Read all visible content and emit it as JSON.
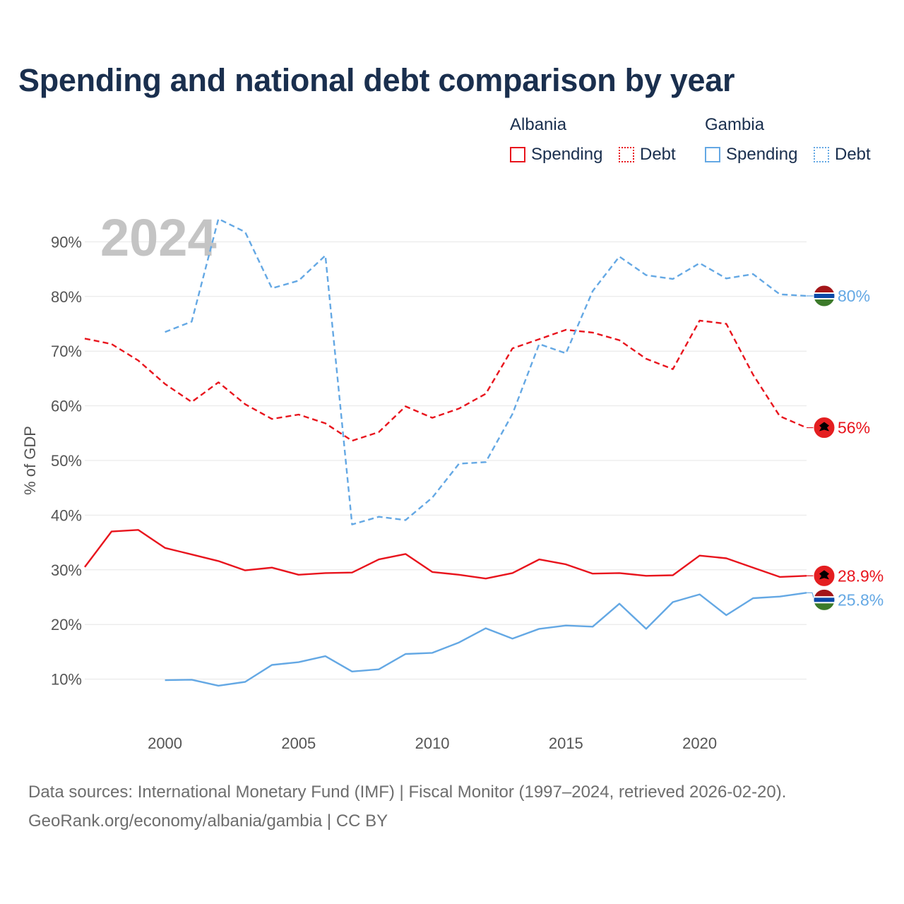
{
  "title": "Spending and national debt comparison by year",
  "legend": {
    "albania": {
      "name": "Albania",
      "spending": "Spending",
      "debt": "Debt"
    },
    "gambia": {
      "name": "Gambia",
      "spending": "Spending",
      "debt": "Debt"
    }
  },
  "year_watermark": "2024",
  "footer": {
    "line1": "Data sources: International Monetary Fund (IMF) | Fiscal Monitor (1997–2024, retrieved 2026-02-20).",
    "line2": "GeoRank.org/economy/albania/gambia | CC BY"
  },
  "colors": {
    "albania": "#e8141d",
    "gambia": "#64a8e4"
  },
  "chart_data": {
    "type": "line",
    "title": "Spending and national debt comparison by year",
    "ylabel": "% of GDP",
    "xlabel": "",
    "xlim": [
      1997,
      2024
    ],
    "ylim": [
      0,
      100
    ],
    "x_ticks": [
      2000,
      2005,
      2010,
      2015,
      2020
    ],
    "x_tick_labels": [
      "2000",
      "2005",
      "2010",
      "2015",
      "2020"
    ],
    "y_ticks": [
      10,
      20,
      30,
      40,
      50,
      60,
      70,
      80,
      90
    ],
    "y_tick_labels": [
      "10%",
      "20%",
      "30%",
      "40%",
      "50%",
      "60%",
      "70%",
      "80%",
      "90%"
    ],
    "grid": true,
    "series": [
      {
        "name": "Albania Spending",
        "country": "albania",
        "style": "solid",
        "end_label": "28.9%",
        "x": [
          1997,
          1998,
          1999,
          2000,
          2001,
          2002,
          2003,
          2004,
          2005,
          2006,
          2007,
          2008,
          2009,
          2010,
          2011,
          2012,
          2013,
          2014,
          2015,
          2016,
          2017,
          2018,
          2019,
          2020,
          2021,
          2022,
          2023,
          2024
        ],
        "values": [
          30.5,
          37.0,
          37.3,
          34.0,
          32.8,
          31.6,
          29.9,
          30.4,
          29.1,
          29.4,
          29.5,
          31.9,
          32.9,
          29.6,
          29.1,
          28.4,
          29.4,
          31.9,
          31.0,
          29.3,
          29.4,
          28.9,
          29.0,
          32.6,
          32.1,
          30.4,
          28.7,
          28.9
        ]
      },
      {
        "name": "Albania Debt",
        "country": "albania",
        "style": "dashed",
        "end_label": "56%",
        "x": [
          1997,
          1998,
          1999,
          2000,
          2001,
          2002,
          2003,
          2004,
          2005,
          2006,
          2007,
          2008,
          2009,
          2010,
          2011,
          2012,
          2013,
          2014,
          2015,
          2016,
          2017,
          2018,
          2019,
          2020,
          2021,
          2022,
          2023,
          2024
        ],
        "values": [
          72.3,
          71.3,
          68.3,
          64.0,
          60.7,
          64.3,
          60.3,
          57.6,
          58.4,
          56.8,
          53.6,
          55.2,
          59.9,
          57.8,
          59.5,
          62.2,
          70.5,
          72.2,
          73.9,
          73.4,
          72.0,
          68.6,
          66.7,
          75.6,
          75.0,
          65.7,
          58.1,
          56.0
        ]
      },
      {
        "name": "Gambia Spending",
        "country": "gambia",
        "style": "solid",
        "end_label": "25.8%",
        "x": [
          2000,
          2001,
          2002,
          2003,
          2004,
          2005,
          2006,
          2007,
          2008,
          2009,
          2010,
          2011,
          2012,
          2013,
          2014,
          2015,
          2016,
          2017,
          2018,
          2019,
          2020,
          2021,
          2022,
          2023,
          2024
        ],
        "values": [
          9.8,
          9.9,
          8.8,
          9.5,
          12.6,
          13.1,
          14.2,
          11.4,
          11.8,
          14.6,
          14.8,
          16.7,
          19.3,
          17.4,
          19.2,
          19.8,
          19.6,
          23.8,
          19.2,
          24.1,
          25.5,
          21.7,
          24.8,
          25.1,
          25.8
        ]
      },
      {
        "name": "Gambia Debt",
        "country": "gambia",
        "style": "dashed",
        "end_label": "80%",
        "x": [
          2000,
          2001,
          2002,
          2003,
          2004,
          2005,
          2006,
          2007,
          2008,
          2009,
          2010,
          2011,
          2012,
          2013,
          2014,
          2015,
          2016,
          2017,
          2018,
          2019,
          2020,
          2021,
          2022,
          2023,
          2024
        ],
        "values": [
          73.5,
          75.4,
          94.2,
          91.8,
          81.5,
          82.9,
          87.5,
          38.3,
          39.7,
          39.1,
          43.2,
          49.4,
          49.7,
          58.5,
          71.3,
          69.6,
          81.0,
          87.3,
          83.9,
          83.2,
          86.1,
          83.3,
          84.1,
          80.4,
          80.1
        ]
      }
    ]
  }
}
